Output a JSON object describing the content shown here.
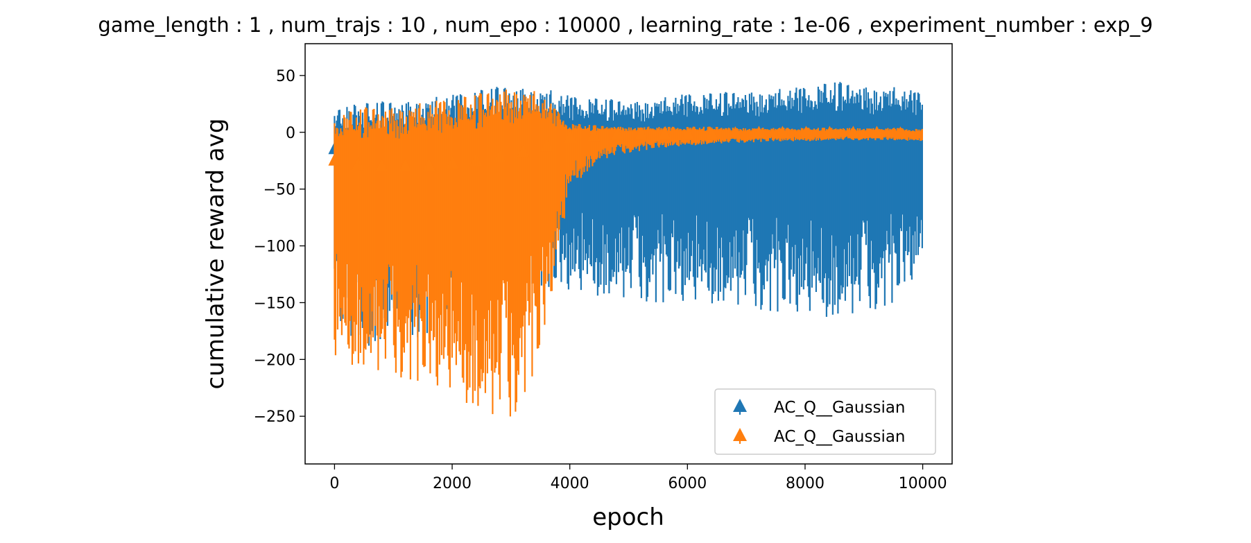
{
  "chart_data": {
    "type": "line",
    "title": "game_length : 1 , num_trajs : 10 , num_epo : 10000 , learning_rate : 1e-06 , experiment_number : exp_9",
    "xlabel": "epoch",
    "ylabel": "cumulative reward avg",
    "xlim": [
      -500,
      10500
    ],
    "ylim": [
      -292,
      78
    ],
    "x_ticks": [
      0,
      2000,
      4000,
      6000,
      8000,
      10000
    ],
    "x_tick_labels": [
      "0",
      "2000",
      "4000",
      "6000",
      "8000",
      "10000"
    ],
    "y_ticks": [
      50,
      0,
      -50,
      -100,
      -150,
      -200,
      -250
    ],
    "y_tick_labels": [
      "50",
      "0",
      "−50",
      "−100",
      "−150",
      "−200",
      "−250"
    ],
    "grid": false,
    "legend_position": "lower-right",
    "marker": "triangle-up",
    "legend": [
      "AC_Q__Gaussian",
      "AC_Q__Gaussian"
    ],
    "series": [
      {
        "name": "AC_Q__Gaussian",
        "color": "#1f77b4",
        "errorbar": true,
        "x": [
          0,
          500,
          1000,
          1500,
          2000,
          2500,
          3000,
          3500,
          4000,
          4500,
          5000,
          5500,
          6000,
          6500,
          7000,
          7500,
          8000,
          8500,
          9000,
          9500,
          10000
        ],
        "mean": [
          -15,
          -18,
          -20,
          -16,
          -14,
          -12,
          -15,
          -14,
          -10,
          -8,
          -7,
          -6,
          -6,
          -5,
          -5,
          -5,
          -5,
          -5,
          -5,
          -5,
          -5
        ],
        "upper": [
          22,
          26,
          28,
          30,
          33,
          38,
          42,
          40,
          32,
          30,
          28,
          30,
          34,
          35,
          37,
          38,
          40,
          45,
          42,
          40,
          35
        ],
        "lower": [
          -180,
          -190,
          -185,
          -180,
          -160,
          -140,
          -130,
          -135,
          -140,
          -145,
          -148,
          -150,
          -150,
          -152,
          -155,
          -158,
          -160,
          -165,
          -160,
          -150,
          -120
        ]
      },
      {
        "name": "AC_Q__Gaussian",
        "color": "#ff7f0e",
        "errorbar": true,
        "x": [
          0,
          500,
          1000,
          1500,
          2000,
          2500,
          3000,
          3500,
          4000,
          4500,
          5000,
          5500,
          6000,
          6500,
          7000,
          7500,
          8000,
          8500,
          9000,
          9500,
          10000
        ],
        "mean": [
          -25,
          -30,
          -30,
          -30,
          -28,
          -25,
          -20,
          -15,
          -5,
          -3,
          -2,
          -2,
          -2,
          -2,
          -1,
          -1,
          -1,
          -1,
          -1,
          -1,
          -3
        ],
        "upper": [
          15,
          22,
          24,
          26,
          30,
          35,
          42,
          35,
          8,
          6,
          5,
          5,
          5,
          5,
          4,
          4,
          4,
          4,
          4,
          4,
          3
        ],
        "lower": [
          -200,
          -210,
          -215,
          -220,
          -230,
          -250,
          -255,
          -200,
          -50,
          -25,
          -18,
          -14,
          -12,
          -10,
          -9,
          -8,
          -8,
          -7,
          -7,
          -7,
          -8
        ]
      }
    ]
  }
}
